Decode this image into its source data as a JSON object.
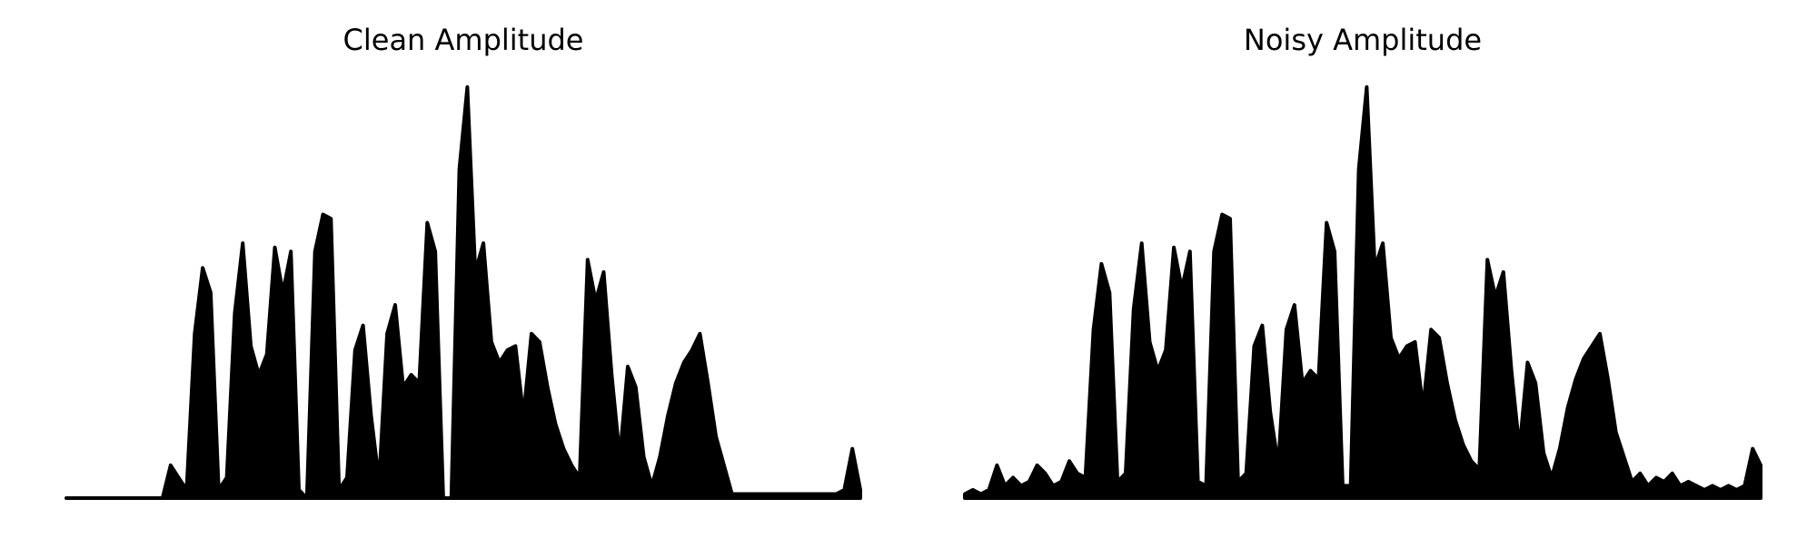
{
  "chart_data": [
    {
      "type": "area",
      "title": "Clean Amplitude",
      "color": "#000000",
      "ylim": [
        0,
        1
      ],
      "values": [
        0,
        0,
        0,
        0,
        0,
        0,
        0,
        0,
        0,
        0,
        0,
        0,
        0,
        0.08,
        0.05,
        0.02,
        0.4,
        0.56,
        0.5,
        0.02,
        0.05,
        0.45,
        0.62,
        0.37,
        0.3,
        0.35,
        0.61,
        0.5,
        0.6,
        0.02,
        0,
        0.6,
        0.69,
        0.68,
        0.02,
        0.05,
        0.36,
        0.42,
        0.2,
        0.04,
        0.4,
        0.47,
        0.27,
        0.3,
        0.28,
        0.67,
        0.6,
        0,
        0,
        0.8,
        1.0,
        0.55,
        0.62,
        0.38,
        0.33,
        0.36,
        0.37,
        0.2,
        0.4,
        0.38,
        0.27,
        0.18,
        0.12,
        0.08,
        0.05,
        0.58,
        0.48,
        0.55,
        0.3,
        0.1,
        0.32,
        0.27,
        0.1,
        0.03,
        0.1,
        0.2,
        0.28,
        0.33,
        0.36,
        0.4,
        0.28,
        0.15,
        0.08,
        0.01,
        0.01,
        0.01,
        0.01,
        0.01,
        0.01,
        0.01,
        0.01,
        0.01,
        0.01,
        0.01,
        0.01,
        0.01,
        0.01,
        0.02,
        0.12,
        0.02
      ]
    },
    {
      "type": "area",
      "title": "Noisy Amplitude",
      "color": "#000000",
      "ylim": [
        0,
        1
      ],
      "values": [
        0.01,
        0.02,
        0.01,
        0.02,
        0.08,
        0.03,
        0.05,
        0.03,
        0.04,
        0.08,
        0.06,
        0.03,
        0.04,
        0.09,
        0.06,
        0.05,
        0.41,
        0.57,
        0.5,
        0.04,
        0.06,
        0.46,
        0.62,
        0.38,
        0.31,
        0.36,
        0.61,
        0.51,
        0.6,
        0.04,
        0.03,
        0.6,
        0.69,
        0.68,
        0.04,
        0.06,
        0.37,
        0.42,
        0.21,
        0.08,
        0.41,
        0.47,
        0.28,
        0.31,
        0.29,
        0.67,
        0.6,
        0.03,
        0.03,
        0.8,
        1.0,
        0.56,
        0.62,
        0.39,
        0.34,
        0.37,
        0.38,
        0.22,
        0.41,
        0.39,
        0.28,
        0.19,
        0.13,
        0.09,
        0.07,
        0.58,
        0.49,
        0.55,
        0.31,
        0.12,
        0.33,
        0.28,
        0.11,
        0.05,
        0.12,
        0.22,
        0.29,
        0.34,
        0.37,
        0.4,
        0.29,
        0.16,
        0.1,
        0.04,
        0.06,
        0.03,
        0.05,
        0.04,
        0.06,
        0.03,
        0.04,
        0.03,
        0.02,
        0.03,
        0.02,
        0.03,
        0.02,
        0.03,
        0.12,
        0.08
      ]
    }
  ]
}
